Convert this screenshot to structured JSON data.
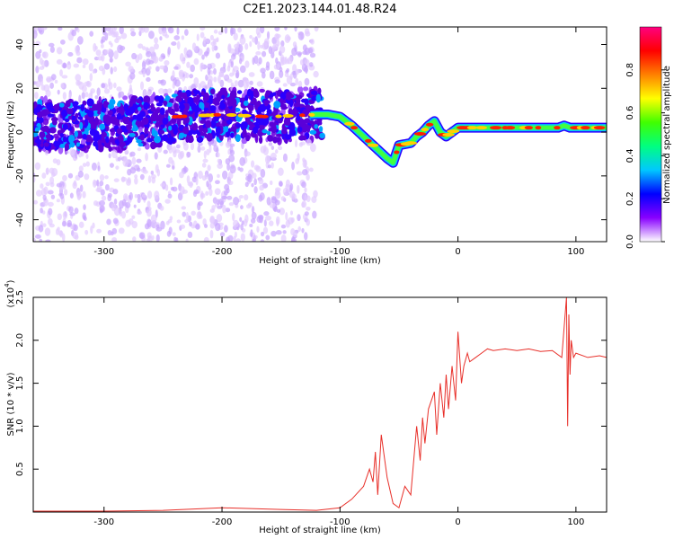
{
  "title": "C2E1.2023.144.01.48.R24",
  "chart_data": [
    {
      "type": "heatmap",
      "xlabel": "Height of straight line (km)",
      "ylabel": "Frequency (Hz)",
      "xlim": [
        -360,
        126
      ],
      "ylim": [
        -50,
        48
      ],
      "xticks": [
        -300,
        -200,
        -100,
        0,
        100
      ],
      "yticks": [
        -40,
        -20,
        0,
        20,
        40
      ],
      "ridge": {
        "x": [
          -360,
          -300,
          -250,
          -240,
          -200,
          -160,
          -120,
          -110,
          -100,
          -90,
          -80,
          -70,
          -60,
          -55,
          -50,
          -40,
          -35,
          -30,
          -25,
          -20,
          -15,
          -10,
          -5,
          0,
          10,
          50,
          85,
          90,
          95,
          126
        ],
        "y": [
          3,
          3,
          5,
          7,
          8,
          7,
          8,
          8,
          7,
          3,
          -2,
          -7,
          -12,
          -14,
          -6,
          -5,
          -2,
          0,
          3,
          5,
          0,
          -2,
          0,
          2,
          2,
          2,
          2,
          3,
          2,
          2
        ]
      },
      "colorbar": {
        "label": "Normalized spectral amplitude",
        "ticks": [
          "0.0",
          "0.2",
          "0.4",
          "0.6",
          "0.8"
        ],
        "colors": [
          "#ffffff",
          "#8800ff",
          "#0000ff",
          "#00c8ff",
          "#00ff80",
          "#40ff00",
          "#ffff00",
          "#ff8000",
          "#ff0000",
          "#ff0080"
        ]
      }
    },
    {
      "type": "line",
      "xlabel": "Height of straight line (km)",
      "ylabel": "SNR (10 * v/v)",
      "yscale_label": "(x10",
      "yscale_exp": "4",
      "xlim": [
        -360,
        126
      ],
      "ylim": [
        0,
        2.5
      ],
      "xticks": [
        -300,
        -200,
        -100,
        0,
        100
      ],
      "yticks": [
        "0.5",
        "1.0",
        "1.5",
        "2.0",
        "2.5"
      ],
      "color": "#e8302a",
      "series": [
        {
          "x": [
            -360,
            -300,
            -250,
            -200,
            -150,
            -120,
            -100,
            -90,
            -80,
            -75,
            -72,
            -70,
            -68,
            -65,
            -60,
            -55,
            -50,
            -45,
            -40,
            -35,
            -32,
            -30,
            -28,
            -25,
            -20,
            -18,
            -15,
            -12,
            -10,
            -8,
            -5,
            -2,
            0,
            3,
            5,
            8,
            10,
            15,
            20,
            25,
            30,
            40,
            50,
            60,
            70,
            80,
            88,
            92,
            93,
            94,
            95,
            96,
            98,
            100,
            110,
            120,
            126
          ],
          "y": [
            0.01,
            0.01,
            0.02,
            0.05,
            0.03,
            0.02,
            0.05,
            0.15,
            0.3,
            0.5,
            0.35,
            0.7,
            0.2,
            0.9,
            0.4,
            0.1,
            0.05,
            0.3,
            0.2,
            1.0,
            0.6,
            1.1,
            0.8,
            1.2,
            1.4,
            0.9,
            1.5,
            1.1,
            1.6,
            1.2,
            1.7,
            1.3,
            2.1,
            1.5,
            1.7,
            1.85,
            1.75,
            1.8,
            1.85,
            1.9,
            1.88,
            1.9,
            1.88,
            1.9,
            1.87,
            1.88,
            1.8,
            2.5,
            1.0,
            2.3,
            1.6,
            2.0,
            1.8,
            1.85,
            1.8,
            1.82,
            1.8
          ]
        }
      ]
    }
  ]
}
